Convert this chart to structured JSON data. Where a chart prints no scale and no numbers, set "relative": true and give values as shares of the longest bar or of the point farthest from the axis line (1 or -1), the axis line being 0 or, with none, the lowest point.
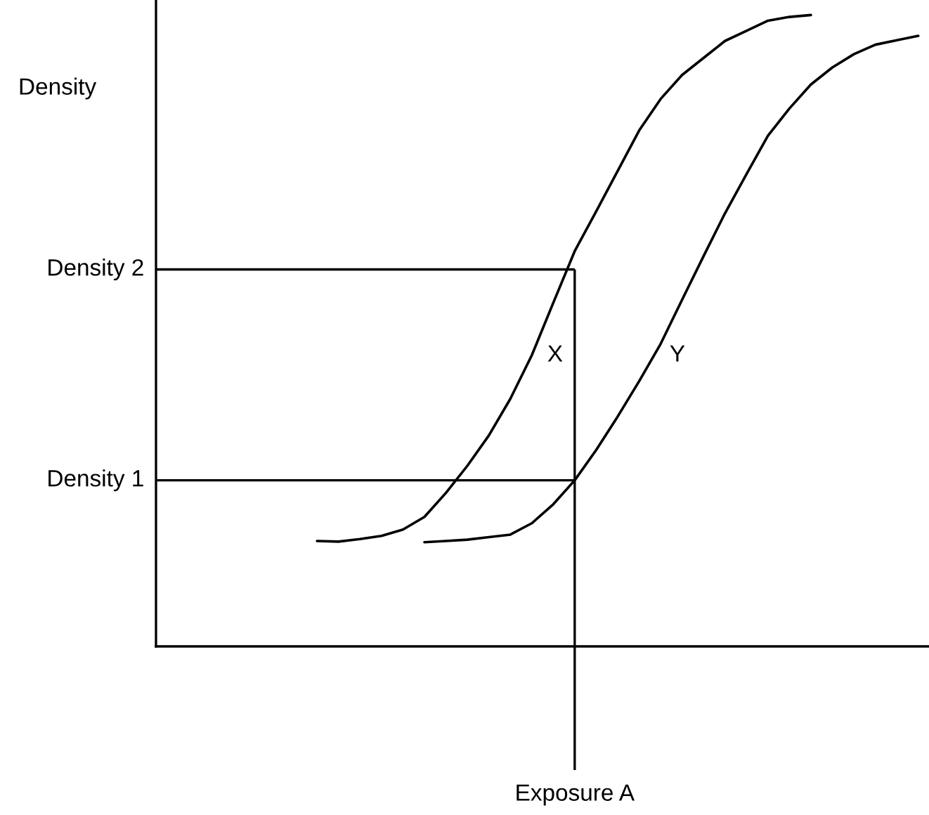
{
  "chart_data": {
    "type": "line",
    "relative": true,
    "ylabel": "Density",
    "categories": [
      null,
      null,
      null,
      null,
      null,
      null,
      null,
      null,
      null,
      null,
      null,
      null,
      null,
      null,
      null,
      null,
      null,
      null,
      null,
      null,
      null,
      null,
      null,
      null,
      null,
      null,
      null,
      null,
      null,
      null,
      null,
      null,
      null,
      null,
      null,
      null
    ],
    "series": [
      {
        "name": "X",
        "color": "#000000",
        "values": [
          null,
          null,
          null,
          null,
          null,
          null,
          null,
          0.167,
          0.166,
          0.17,
          0.175,
          0.185,
          0.205,
          0.243,
          0.286,
          0.334,
          0.392,
          0.461,
          0.544,
          0.626,
          0.689,
          0.753,
          0.817,
          0.867,
          0.905,
          0.932,
          0.959,
          0.975,
          0.991,
          0.997,
          1.0,
          null,
          null,
          null,
          null,
          null
        ]
      },
      {
        "name": "Y",
        "color": "#000000",
        "values": [
          null,
          null,
          null,
          null,
          null,
          null,
          null,
          null,
          null,
          null,
          null,
          null,
          0.165,
          0.167,
          0.169,
          0.173,
          0.177,
          0.195,
          0.225,
          0.263,
          0.311,
          0.364,
          0.42,
          0.479,
          0.549,
          0.618,
          0.686,
          0.748,
          0.809,
          0.852,
          0.89,
          0.917,
          0.938,
          0.953,
          0.96,
          0.967
        ]
      }
    ],
    "ref_lines": [
      {
        "axis": "y",
        "value": 0.597,
        "label": "Density 2"
      },
      {
        "axis": "y",
        "value": 0.263,
        "label": "Density 1"
      }
    ],
    "annotations": [
      "Exposure A"
    ]
  }
}
